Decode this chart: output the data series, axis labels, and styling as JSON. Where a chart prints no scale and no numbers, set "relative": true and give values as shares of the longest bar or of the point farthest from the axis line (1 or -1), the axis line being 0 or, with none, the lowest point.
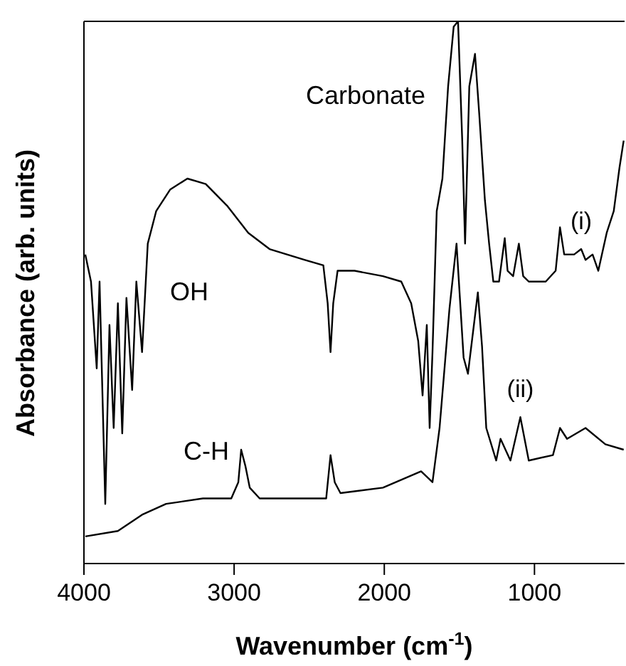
{
  "chart_data": {
    "type": "line",
    "xlabel": "Wavenumber (cm$^{-1}$)",
    "ylabel": "Absorbance (arb. units)",
    "relative": true,
    "xlim": [
      4000,
      400
    ],
    "xticks": [
      4000,
      3000,
      2000,
      1000
    ],
    "grid": false,
    "legend": false,
    "marker": "none",
    "line_style": "solid",
    "annotations": [
      "Carbonate",
      "OH",
      "C-H"
    ],
    "series": [
      {
        "name": "(i)",
        "color": "#000000",
        "x": [
          3991,
          3953,
          3915,
          3896,
          3858,
          3830,
          3802,
          3774,
          3745,
          3717,
          3679,
          3651,
          3613,
          3575,
          3519,
          3425,
          3311,
          3189,
          3047,
          2906,
          2764,
          2528,
          2406,
          2377,
          2358,
          2340,
          2311,
          2198,
          2009,
          1887,
          1821,
          1774,
          1745,
          1717,
          1698,
          1679,
          1651,
          1613,
          1575,
          1538,
          1509,
          1481,
          1462,
          1434,
          1396,
          1368,
          1330,
          1302,
          1274,
          1236,
          1198,
          1179,
          1142,
          1104,
          1075,
          1038,
          925,
          859,
          830,
          802,
          736,
          689,
          660,
          613,
          575,
          519,
          472,
          434,
          406
        ],
        "values": [
          0.57,
          0.52,
          0.36,
          0.52,
          0.11,
          0.44,
          0.25,
          0.48,
          0.24,
          0.49,
          0.32,
          0.52,
          0.39,
          0.59,
          0.65,
          0.69,
          0.71,
          0.7,
          0.66,
          0.61,
          0.58,
          0.56,
          0.55,
          0.48,
          0.39,
          0.48,
          0.54,
          0.54,
          0.53,
          0.52,
          0.48,
          0.41,
          0.31,
          0.44,
          0.25,
          0.39,
          0.65,
          0.71,
          0.88,
          0.99,
          1,
          0.78,
          0.59,
          0.88,
          0.94,
          0.83,
          0.67,
          0.59,
          0.52,
          0.52,
          0.6,
          0.54,
          0.53,
          0.59,
          0.53,
          0.52,
          0.52,
          0.54,
          0.62,
          0.57,
          0.57,
          0.58,
          0.56,
          0.57,
          0.54,
          0.61,
          0.65,
          0.73,
          0.78
        ]
      },
      {
        "name": "(ii)",
        "color": "#000000",
        "x": [
          3991,
          3774,
          3613,
          3453,
          3208,
          3019,
          2972,
          2953,
          2925,
          2896,
          2830,
          2387,
          2358,
          2330,
          2292,
          2009,
          1755,
          1679,
          1632,
          1566,
          1519,
          1472,
          1443,
          1377,
          1349,
          1321,
          1255,
          1226,
          1160,
          1094,
          1038,
          877,
          830,
          783,
          660,
          528,
          406
        ],
        "values": [
          0.05,
          0.06,
          0.09,
          0.11,
          0.12,
          0.12,
          0.15,
          0.21,
          0.18,
          0.14,
          0.12,
          0.12,
          0.2,
          0.15,
          0.13,
          0.14,
          0.17,
          0.15,
          0.25,
          0.47,
          0.59,
          0.38,
          0.35,
          0.5,
          0.4,
          0.25,
          0.19,
          0.23,
          0.19,
          0.27,
          0.19,
          0.2,
          0.25,
          0.23,
          0.25,
          0.22,
          0.21
        ]
      }
    ]
  }
}
